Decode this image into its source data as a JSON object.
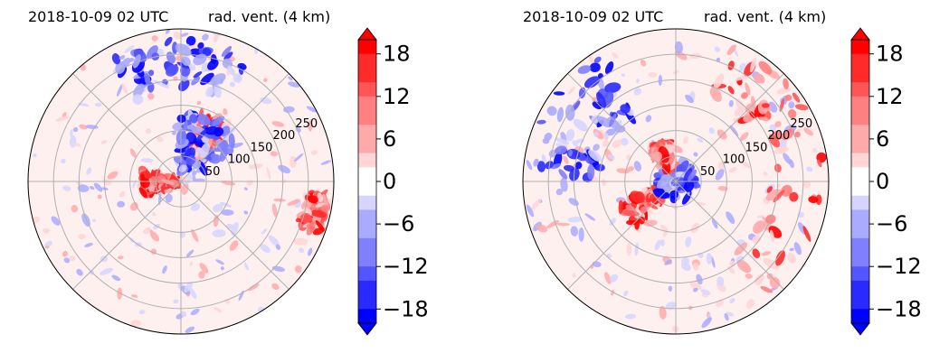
{
  "colors": {
    "title_time": "#0000ff",
    "title_text": "#000000",
    "grid": "#b0b0b0",
    "cmap": [
      "#0000ff",
      "#2a2aff",
      "#5555ff",
      "#8080ff",
      "#aaaaff",
      "#d5d5ff",
      "#ffffff",
      "#ffd5d5",
      "#ffaaaa",
      "#ff8080",
      "#ff5555",
      "#ff2a2a",
      "#ff0000"
    ]
  },
  "chart_data": [
    {
      "type": "heatmap",
      "subtype": "polar-contourf",
      "title_left": "2018-10-09 02 UTC",
      "title_right": "rad. vent. (4 km)",
      "radial_ticks": [
        "50",
        "100",
        "150",
        "200",
        "250"
      ],
      "colorbar": {
        "ticks": [
          "18",
          "12",
          "6",
          "0",
          "−6",
          "−12",
          "−18"
        ],
        "range": [
          -20,
          20
        ],
        "extend": "both"
      },
      "grid": true,
      "features": [
        {
          "sign": "positive",
          "range_km": [
            10,
            80
          ],
          "azimuth_deg": [
            250,
            285
          ]
        },
        {
          "sign": "positive",
          "range_km": [
            60,
            140
          ],
          "azimuth_deg": [
            15,
            45
          ]
        },
        {
          "sign": "negative",
          "range_km": [
            20,
            140
          ],
          "azimuth_deg": [
            0,
            60
          ]
        },
        {
          "sign": "negative",
          "range_km": [
            180,
            280
          ],
          "azimuth_deg": [
            330,
            30
          ]
        },
        {
          "sign": "positive",
          "range_km": [
            250,
            290
          ],
          "azimuth_deg": [
            95,
            110
          ]
        }
      ]
    },
    {
      "type": "heatmap",
      "subtype": "polar-contourf",
      "title_left": "2018-10-09 02 UTC",
      "title_right": "rad. vent. (4 km)",
      "radial_ticks": [
        "50",
        "100",
        "150",
        "200",
        "250"
      ],
      "colorbar": {
        "ticks": [
          "18",
          "12",
          "6",
          "0",
          "−6",
          "−12",
          "−18"
        ],
        "range": [
          -20,
          20
        ],
        "extend": "both"
      },
      "grid": true,
      "features": [
        {
          "sign": "positive",
          "range_km": [
            180,
            290
          ],
          "azimuth_deg": [
            20,
            150
          ]
        },
        {
          "sign": "positive",
          "range_km": [
            40,
            120
          ],
          "azimuth_deg": [
            220,
            250
          ]
        },
        {
          "sign": "negative",
          "range_km": [
            150,
            290
          ],
          "azimuth_deg": [
            270,
            330
          ]
        },
        {
          "sign": "negative",
          "range_km": [
            0,
            40
          ],
          "azimuth_deg": [
            0,
            360
          ]
        },
        {
          "sign": "positive",
          "range_km": [
            30,
            80
          ],
          "azimuth_deg": [
            320,
            350
          ]
        }
      ]
    }
  ]
}
